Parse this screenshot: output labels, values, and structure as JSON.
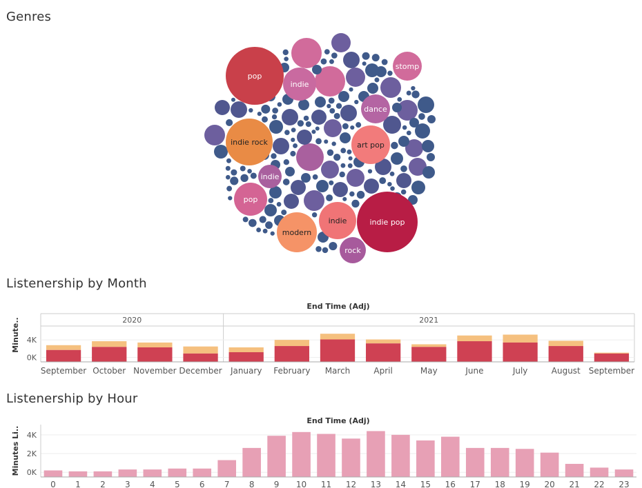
{
  "genres": {
    "title": "Genres",
    "chart_data": {
      "type": "bubble",
      "labeled_bubbles": [
        "pop",
        "indie",
        "stomp",
        "dance",
        "indie rock",
        "art pop",
        "indie",
        "pop",
        "modern",
        "indie",
        "indie pop",
        "rock"
      ]
    }
  },
  "monthly": {
    "title": "Listenership by Month",
    "header": "End Time (Adj)",
    "ylabel": "Minute..",
    "year_groups": [
      "2020",
      "2021"
    ],
    "chart_data": {
      "type": "bar",
      "stacked": true,
      "categories": [
        "September",
        "October",
        "November",
        "December",
        "January",
        "February",
        "March",
        "April",
        "May",
        "June",
        "July",
        "August",
        "September"
      ],
      "years": [
        "2020",
        "2020",
        "2020",
        "2020",
        "2021",
        "2021",
        "2021",
        "2021",
        "2021",
        "2021",
        "2021",
        "2021",
        "2021"
      ],
      "series": [
        {
          "values": [
            1700,
            2400,
            2300,
            900,
            1200,
            2600,
            4100,
            3200,
            2400,
            3700,
            3400,
            2600,
            900
          ]
        },
        {
          "values": [
            1100,
            1300,
            1100,
            1600,
            1100,
            1400,
            1300,
            900,
            600,
            1300,
            1800,
            1200,
            200
          ]
        }
      ],
      "ylim": [
        -1000,
        7000
      ],
      "yticks": [
        "4K",
        "0K"
      ]
    }
  },
  "hourly": {
    "title": "Listenership by Hour",
    "header": "End Time (Adj)",
    "ylabel": "Minutes Li..",
    "chart_data": {
      "type": "bar",
      "categories": [
        "0",
        "1",
        "2",
        "3",
        "4",
        "5",
        "6",
        "7",
        "8",
        "9",
        "10",
        "11",
        "12",
        "13",
        "14",
        "15",
        "16",
        "17",
        "18",
        "19",
        "20",
        "21",
        "22",
        "23"
      ],
      "values": [
        200,
        100,
        100,
        300,
        300,
        400,
        400,
        1300,
        2600,
        3900,
        4300,
        4100,
        3600,
        4400,
        4000,
        3400,
        3800,
        2600,
        2600,
        2500,
        2100,
        900,
        500,
        300
      ],
      "ylim": [
        -500,
        4800
      ],
      "yticks": [
        "4K",
        "2K",
        "0K"
      ]
    }
  },
  "colors": {
    "bar_red": "#cf4153",
    "bar_peach": "#f5c07f",
    "bar_pink": "#e7a0b5",
    "axis": "#aaaaaa",
    "grid": "#eeeeee",
    "text": "#333333"
  }
}
